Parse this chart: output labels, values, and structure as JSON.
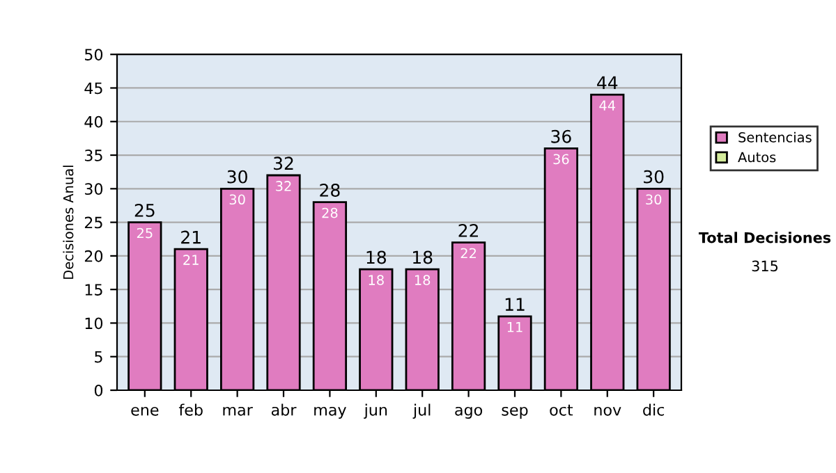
{
  "chart_data": {
    "type": "bar",
    "stacked": true,
    "ylabel": "Decisiones Anual",
    "categories": [
      "ene",
      "feb",
      "mar",
      "abr",
      "may",
      "jun",
      "jul",
      "ago",
      "sep",
      "oct",
      "nov",
      "dic"
    ],
    "series": [
      {
        "name": "Sentencias",
        "color": "#e07cc0",
        "values": [
          25,
          21,
          30,
          32,
          28,
          18,
          18,
          22,
          11,
          36,
          44,
          30
        ],
        "value_labels": [
          "25",
          "21",
          "30",
          "32",
          "28",
          "18",
          "18",
          "22",
          "11",
          "36",
          "44",
          "30"
        ]
      },
      {
        "name": "Autos",
        "color": "#d4ec9c",
        "values": [
          0,
          0,
          0,
          0,
          0,
          0,
          0,
          0,
          0,
          0,
          0,
          0
        ]
      }
    ],
    "totals": [
      "25",
      "21",
      "30",
      "32",
      "28",
      "18",
      "18",
      "22",
      "11",
      "36",
      "44",
      "30"
    ],
    "ylim": [
      0,
      50
    ],
    "yticks": [
      0,
      5,
      10,
      15,
      20,
      25,
      30,
      35,
      40,
      45,
      50
    ],
    "grid": "y",
    "legend": "right",
    "annotations": [
      "Total Decisiones",
      "315"
    ]
  }
}
